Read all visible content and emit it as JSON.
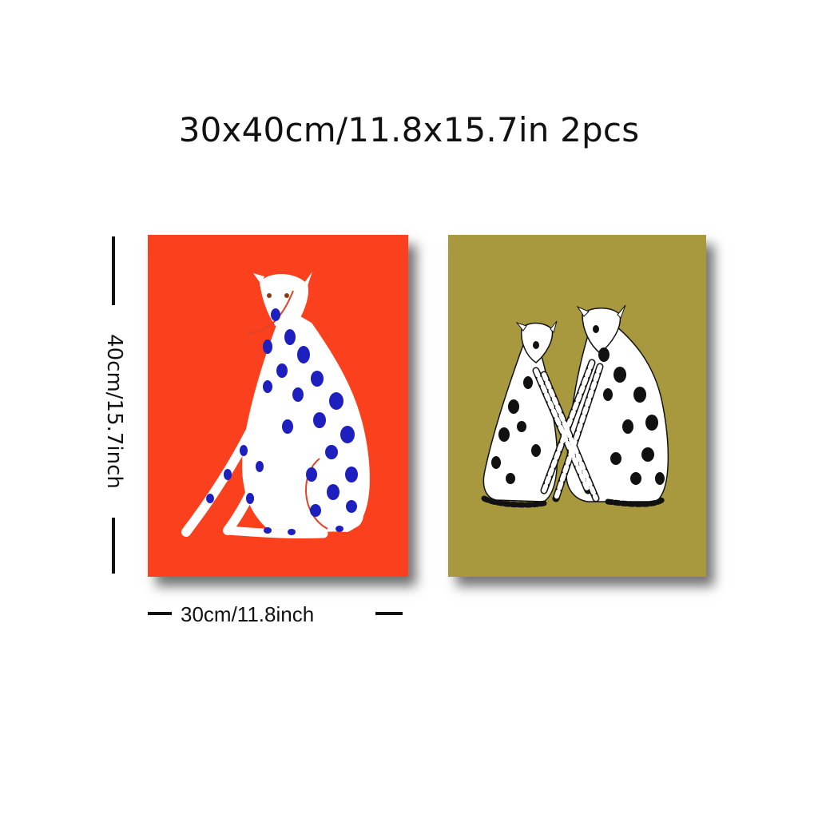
{
  "title": "30x40cm/11.8x15.7in 2pcs",
  "height_label": "40cm/15.7inch",
  "width_label": "30cm/11.8inch",
  "colors": {
    "left_background": "#fa401c",
    "right_background": "#a8993f",
    "spot_left": "#1d1fbf",
    "spot_right": "#111111"
  }
}
